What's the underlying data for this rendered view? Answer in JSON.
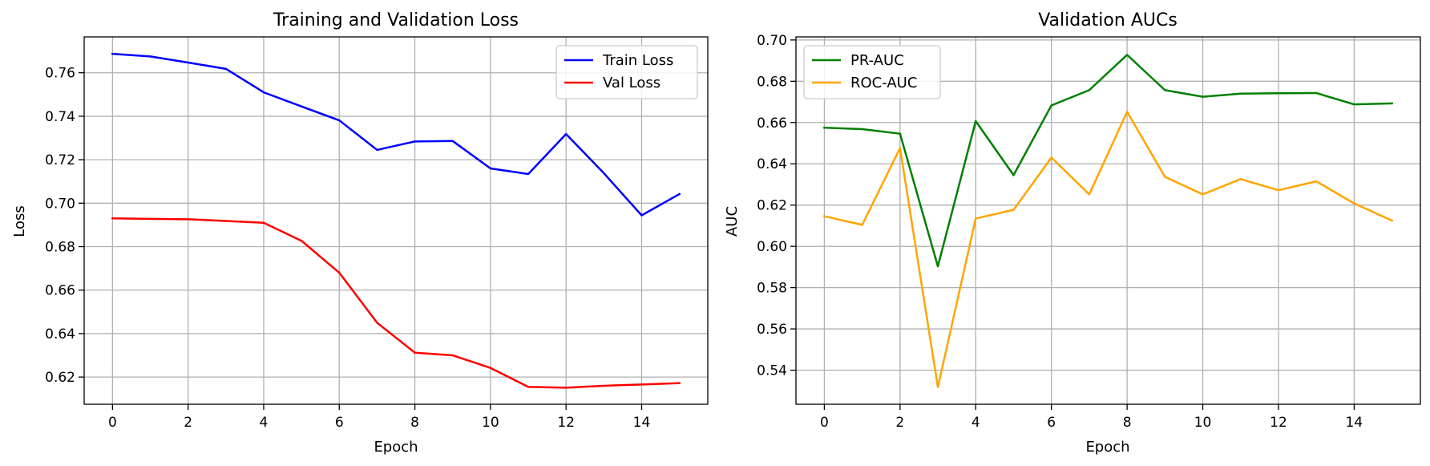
{
  "chart_data": [
    {
      "type": "line",
      "title": "Training and Validation Loss",
      "xlabel": "Epoch",
      "ylabel": "Loss",
      "xlim": [
        -0.75,
        15.75
      ],
      "ylim": [
        0.6075,
        0.7765
      ],
      "xticks": [
        0,
        2,
        4,
        6,
        8,
        10,
        12,
        14
      ],
      "xtick_labels": [
        "0",
        "2",
        "4",
        "6",
        "8",
        "10",
        "12",
        "14"
      ],
      "yticks": [
        0.62,
        0.64,
        0.66,
        0.68,
        0.7,
        0.72,
        0.74,
        0.76
      ],
      "ytick_labels": [
        "0.62",
        "0.64",
        "0.66",
        "0.68",
        "0.70",
        "0.72",
        "0.74",
        "0.76"
      ],
      "grid": true,
      "legend_position": "top-right",
      "x": [
        0,
        1,
        2,
        3,
        4,
        5,
        6,
        7,
        8,
        9,
        10,
        11,
        12,
        13,
        14,
        15
      ],
      "series": [
        {
          "name": "Train Loss",
          "color": "#0000ff",
          "values": [
            0.7687,
            0.7675,
            0.7647,
            0.7618,
            0.751,
            0.7445,
            0.7381,
            0.7245,
            0.7284,
            0.7286,
            0.716,
            0.7134,
            0.7318,
            0.7138,
            0.6944,
            0.7042
          ]
        },
        {
          "name": "Val Loss",
          "color": "#ff0000",
          "values": [
            0.693,
            0.6928,
            0.6926,
            0.6918,
            0.691,
            0.6827,
            0.668,
            0.645,
            0.6312,
            0.63,
            0.6242,
            0.6155,
            0.6151,
            0.616,
            0.6166,
            0.6172
          ]
        }
      ]
    },
    {
      "type": "line",
      "title": "Validation AUCs",
      "xlabel": "Epoch",
      "ylabel": "AUC",
      "xlim": [
        -0.75,
        15.75
      ],
      "ylim": [
        0.5235,
        0.7015
      ],
      "xticks": [
        0,
        2,
        4,
        6,
        8,
        10,
        12,
        14
      ],
      "xtick_labels": [
        "0",
        "2",
        "4",
        "6",
        "8",
        "10",
        "12",
        "14"
      ],
      "yticks": [
        0.54,
        0.56,
        0.58,
        0.6,
        0.62,
        0.64,
        0.66,
        0.68,
        0.7
      ],
      "ytick_labels": [
        "0.54",
        "0.56",
        "0.58",
        "0.60",
        "0.62",
        "0.64",
        "0.66",
        "0.68",
        "0.70"
      ],
      "grid": true,
      "legend_position": "top-left",
      "x": [
        0,
        1,
        2,
        3,
        4,
        5,
        6,
        7,
        8,
        9,
        10,
        11,
        12,
        13,
        14,
        15
      ],
      "series": [
        {
          "name": "PR-AUC",
          "color": "#008000",
          "values": [
            0.6575,
            0.6568,
            0.6546,
            0.5903,
            0.6607,
            0.6345,
            0.6683,
            0.6757,
            0.6928,
            0.6757,
            0.6725,
            0.674,
            0.6742,
            0.6743,
            0.6688,
            0.6693
          ]
        },
        {
          "name": "ROC-AUC",
          "color": "#ffa500",
          "values": [
            0.6146,
            0.6104,
            0.6476,
            0.5318,
            0.6135,
            0.6177,
            0.643,
            0.6252,
            0.6652,
            0.6337,
            0.6252,
            0.6326,
            0.6272,
            0.6315,
            0.6208,
            0.6125
          ]
        }
      ]
    }
  ]
}
